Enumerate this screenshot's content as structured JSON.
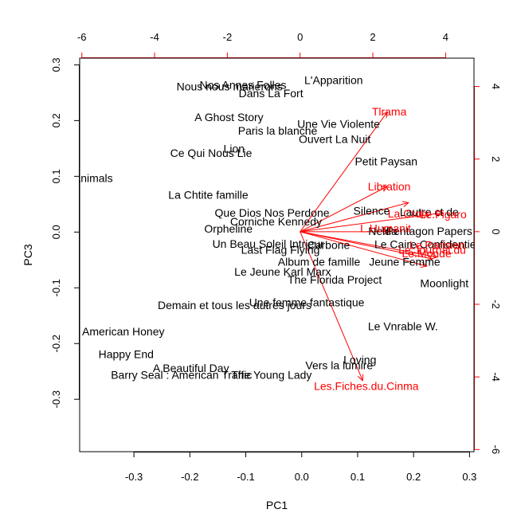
{
  "chart_data": {
    "type": "scatter",
    "title": "",
    "xlabel": "PC1",
    "ylabel": "PC3",
    "xlim": [
      -0.397,
      0.308
    ],
    "ylim": [
      -0.394,
      0.312
    ],
    "x_ticks": [
      -0.3,
      -0.2,
      -0.1,
      0.0,
      0.1,
      0.2,
      0.3
    ],
    "y_ticks": [
      -0.3,
      -0.2,
      -0.1,
      0.0,
      0.1,
      0.2,
      0.3
    ],
    "top_axis": {
      "lim": [
        -6.06,
        4.78
      ],
      "ticks": [
        -6,
        -4,
        -2,
        0,
        2,
        4
      ]
    },
    "right_axis": {
      "lim": [
        -6.06,
        4.78
      ],
      "ticks": [
        -6,
        -4,
        -2,
        0,
        2,
        4
      ]
    },
    "observation_color": "#000000",
    "variable_color": "#ff0000",
    "observations": [
      {
        "label": "Nos Annes Folles",
        "x": -0.105,
        "y": 0.264
      },
      {
        "label": "Nous nous marierons",
        "x": -0.129,
        "y": 0.261
      },
      {
        "label": "Dans La Fort",
        "x": -0.055,
        "y": 0.249
      },
      {
        "label": "L'Apparition",
        "x": 0.057,
        "y": 0.273
      },
      {
        "label": "A Ghost Story",
        "x": -0.13,
        "y": 0.206
      },
      {
        "label": "Paris la blanche",
        "x": -0.043,
        "y": 0.182
      },
      {
        "label": "Une Vie Violente",
        "x": 0.066,
        "y": 0.194
      },
      {
        "label": "Ouvert La Nuit",
        "x": 0.059,
        "y": 0.167
      },
      {
        "label": "Lion",
        "x": -0.121,
        "y": 0.15
      },
      {
        "label": "Ce Qui Nous Lie",
        "x": -0.162,
        "y": 0.142
      },
      {
        "label": "Petit Paysan",
        "x": 0.151,
        "y": 0.127
      },
      {
        "label": "Nocturnal Animals",
        "x": -0.418,
        "y": 0.097
      },
      {
        "label": "La Chtite famille",
        "x": -0.167,
        "y": 0.067
      },
      {
        "label": "Que Dios Nos Perdone",
        "x": -0.053,
        "y": 0.035
      },
      {
        "label": "Silence",
        "x": 0.125,
        "y": 0.038
      },
      {
        "label": "Lautre ct de",
        "x": 0.228,
        "y": 0.036
      },
      {
        "label": "Corniche Kennedy",
        "x": -0.046,
        "y": 0.019
      },
      {
        "label": "Orpheline",
        "x": -0.131,
        "y": 0.006
      },
      {
        "label": "Nelda",
        "x": 0.145,
        "y": 0.002
      },
      {
        "label": "Pentagon Papers",
        "x": 0.228,
        "y": 0.002
      },
      {
        "label": "Un Beau Soleil Intrieur",
        "x": -0.06,
        "y": -0.021
      },
      {
        "label": "Le Caire Confidentiel",
        "x": 0.223,
        "y": -0.022
      },
      {
        "label": "Carbone",
        "x": 0.048,
        "y": -0.023
      },
      {
        "label": "Last Flag Flying",
        "x": -0.038,
        "y": -0.032
      },
      {
        "label": "Album de famille",
        "x": 0.031,
        "y": -0.053
      },
      {
        "label": "Jeune Femme",
        "x": 0.184,
        "y": -0.053
      },
      {
        "label": "Le Jeune Karl Marx",
        "x": -0.034,
        "y": -0.071
      },
      {
        "label": "The Florida Project",
        "x": 0.059,
        "y": -0.085
      },
      {
        "label": "Moonlight",
        "x": 0.255,
        "y": -0.092
      },
      {
        "label": "Une femme fantastique",
        "x": 0.009,
        "y": -0.126
      },
      {
        "label": "Demain et tous les autres jours",
        "x": -0.12,
        "y": -0.131
      },
      {
        "label": "Le Vnrable W.",
        "x": 0.181,
        "y": -0.169
      },
      {
        "label": "American Honey",
        "x": -0.319,
        "y": -0.178
      },
      {
        "label": "Happy End",
        "x": -0.314,
        "y": -0.219
      },
      {
        "label": "Loving",
        "x": 0.104,
        "y": -0.229
      },
      {
        "label": "Vers la lumire",
        "x": 0.067,
        "y": -0.239
      },
      {
        "label": "A Beautiful Day",
        "x": -0.198,
        "y": -0.244
      },
      {
        "label": "Barry Seal : American Traffic",
        "x": -0.215,
        "y": -0.256
      },
      {
        "label": "The Young Lady",
        "x": -0.054,
        "y": -0.256
      }
    ],
    "loadings": [
      {
        "label": "Tlrama",
        "x": 2.45,
        "y": 3.31
      },
      {
        "label": "Libration",
        "x": 2.45,
        "y": 1.25
      },
      {
        "label": "La.Croix",
        "x": 2.98,
        "y": 0.5
      },
      {
        "label": "Le.Figaro",
        "x": 3.93,
        "y": 0.48
      },
      {
        "label": "L.Humanit",
        "x": 2.35,
        "y": 0.1
      },
      {
        "label": "Le.Parisien",
        "x": 3.77,
        "y": -0.37
      },
      {
        "label": "Le.Journal.du",
        "x": 3.63,
        "y": -0.5
      },
      {
        "label": "Le.Monde",
        "x": 3.48,
        "y": -0.6
      },
      {
        "label": "Les.Fiches.du.Cinma",
        "x": 1.82,
        "y": -4.25
      }
    ],
    "arrows": [
      {
        "x": 2.4,
        "y": 3.3
      },
      {
        "x": 2.4,
        "y": 1.25
      },
      {
        "x": 2.98,
        "y": 0.8
      },
      {
        "x": 3.93,
        "y": 0.52
      },
      {
        "x": 2.45,
        "y": 0.0
      },
      {
        "x": 3.77,
        "y": -0.7
      },
      {
        "x": 3.63,
        "y": -0.75
      },
      {
        "x": 3.48,
        "y": -0.95
      },
      {
        "x": 1.72,
        "y": -4.1
      }
    ]
  }
}
